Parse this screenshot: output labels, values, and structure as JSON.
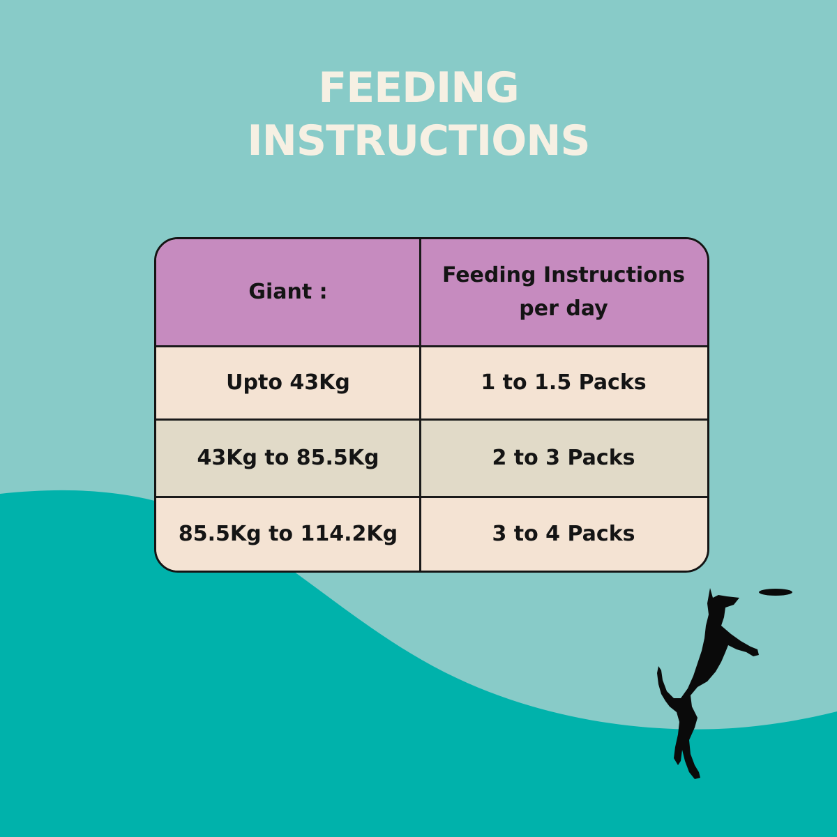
{
  "title": {
    "line1": "FEEDING",
    "line2": "INSTRUCTIONS"
  },
  "table": {
    "header": {
      "left": "Giant :",
      "right_line1": "Feeding Instructions",
      "right_line2": "per day"
    },
    "rows": [
      {
        "weight": "Upto 43Kg",
        "amount": "1 to 1.5 Packs"
      },
      {
        "weight": "43Kg to 85.5Kg",
        "amount": "2 to 3 Packs"
      },
      {
        "weight": "85.5Kg to 114.2Kg",
        "amount": "3 to 4 Packs"
      }
    ]
  },
  "colors": {
    "background": "#88cbc8",
    "wave": "#00b2ab",
    "title": "#f6f0e3",
    "header": "#c68bbf",
    "row_light": "#f4e3d3",
    "row_alt": "#e1dac8",
    "text": "#141414"
  },
  "illustration": {
    "icon": "dog-catching-frisbee-silhouette"
  }
}
